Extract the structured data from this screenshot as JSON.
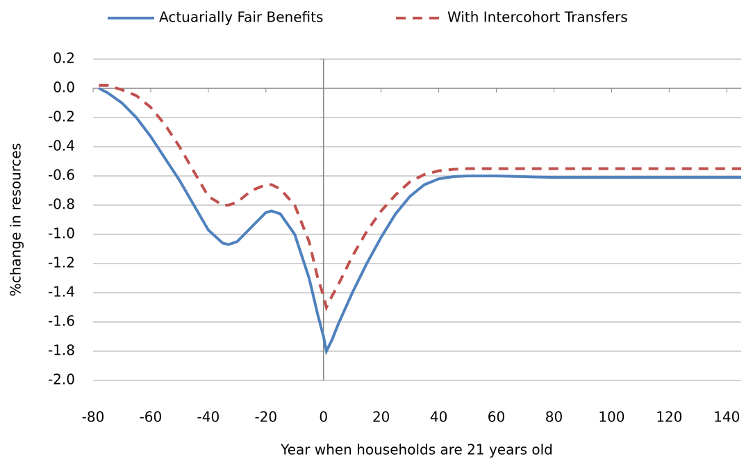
{
  "chart_data": {
    "type": "line",
    "x_label": "Year when households are 21 years old",
    "y_label": "%change in resources",
    "x": [
      -78,
      -75,
      -70,
      -65,
      -60,
      -55,
      -50,
      -45,
      -40,
      -35,
      -33,
      -30,
      -25,
      -20,
      -18,
      -15,
      -10,
      -5,
      -2,
      0,
      1,
      3,
      5,
      10,
      15,
      20,
      25,
      30,
      35,
      40,
      45,
      50,
      60,
      80,
      100,
      120,
      145
    ],
    "series": [
      {
        "name": "Actuarially Fair Benefits",
        "color": "#4f81bd",
        "dash": "solid",
        "values": [
          0.0,
          -0.03,
          -0.1,
          -0.2,
          -0.33,
          -0.48,
          -0.63,
          -0.8,
          -0.97,
          -1.06,
          -1.07,
          -1.05,
          -0.95,
          -0.85,
          -0.84,
          -0.86,
          -1.0,
          -1.3,
          -1.55,
          -1.7,
          -1.8,
          -1.72,
          -1.62,
          -1.4,
          -1.2,
          -1.02,
          -0.86,
          -0.74,
          -0.66,
          -0.62,
          -0.605,
          -0.6,
          -0.6,
          -0.61,
          -0.61,
          -0.61,
          -0.61
        ]
      },
      {
        "name": "With Intercohort Transfers",
        "color": "#c0504d",
        "dash": "dashed",
        "values": [
          0.02,
          0.02,
          -0.01,
          -0.05,
          -0.13,
          -0.25,
          -0.4,
          -0.57,
          -0.74,
          -0.8,
          -0.8,
          -0.78,
          -0.7,
          -0.66,
          -0.66,
          -0.69,
          -0.8,
          -1.05,
          -1.3,
          -1.42,
          -1.5,
          -1.42,
          -1.35,
          -1.15,
          -0.98,
          -0.84,
          -0.73,
          -0.64,
          -0.59,
          -0.565,
          -0.555,
          -0.55,
          -0.55,
          -0.55,
          -0.55,
          -0.55,
          -0.55
        ]
      }
    ],
    "xlim": [
      -80,
      145
    ],
    "xticks": [
      -80,
      -60,
      -40,
      -20,
      0,
      20,
      40,
      60,
      80,
      100,
      120,
      140
    ],
    "ylim": [
      -2.0,
      0.2
    ],
    "yticks": [
      0.2,
      {
        "value": 0,
        "label": "0.0"
      },
      -0.2,
      -0.4,
      -0.6,
      -0.8,
      {
        "value": -1,
        "label": "-1.0"
      },
      -1.2,
      -1.4,
      -1.6,
      -1.8,
      {
        "value": -2,
        "label": "-2.0"
      }
    ],
    "grid": true,
    "legend": "top"
  }
}
